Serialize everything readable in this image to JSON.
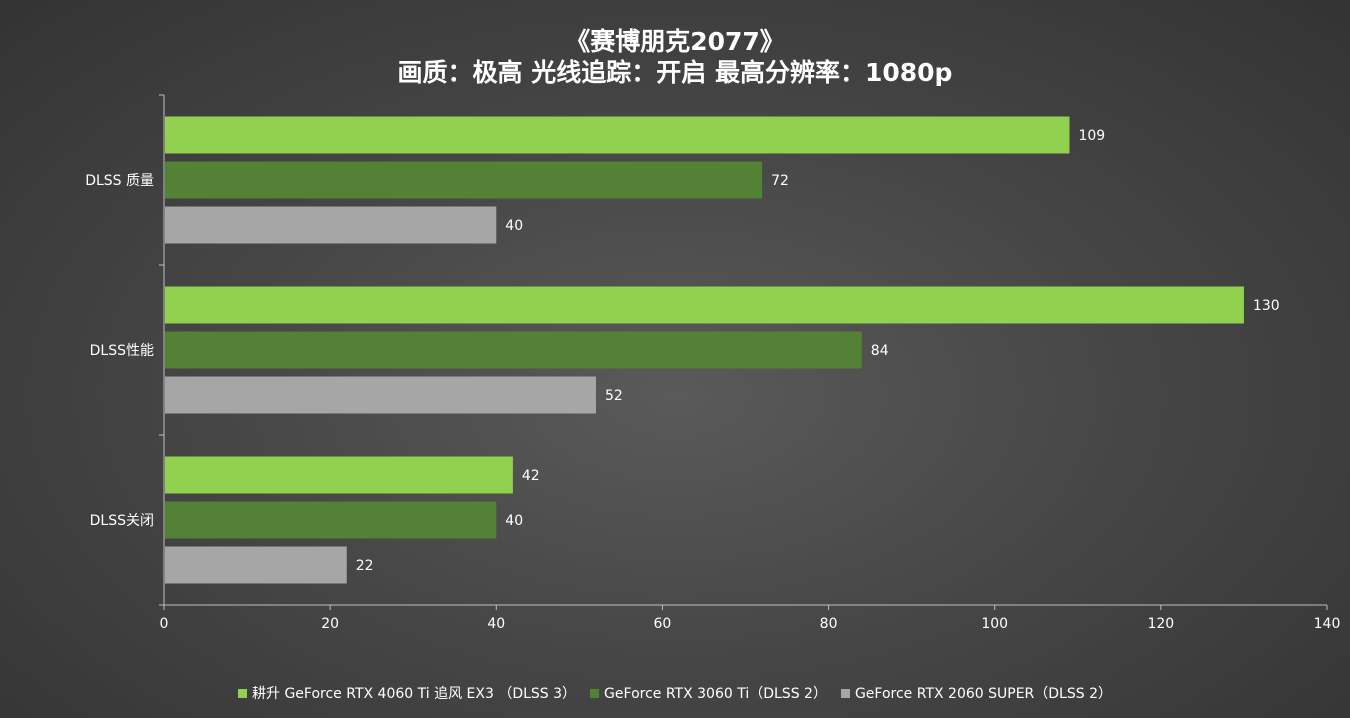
{
  "chart_data": {
    "type": "bar",
    "orientation": "horizontal",
    "title": "《赛博朋克2077》",
    "subtitle": "画质：极高  光线追踪：开启  最高分辨率：1080p",
    "categories": [
      "DLSS 质量",
      "DLSS性能",
      "DLSS关闭"
    ],
    "series": [
      {
        "name": "耕升 GeForce RTX 4060 Ti 追风 EX3 （DLSS 3）",
        "color": "#92d050",
        "values": [
          109,
          130,
          42
        ]
      },
      {
        "name": "GeForce RTX 3060 Ti（DLSS 2）",
        "color": "#538135",
        "values": [
          72,
          84,
          40
        ]
      },
      {
        "name": "GeForce RTX 2060 SUPER（DLSS 2）",
        "color": "#a6a6a6",
        "values": [
          40,
          52,
          22
        ]
      }
    ],
    "xlim": [
      0,
      140
    ],
    "xticks": [
      0,
      20,
      40,
      60,
      80,
      100,
      120,
      140
    ],
    "xlabel": "",
    "ylabel": "",
    "grid": false,
    "legend_position": "bottom"
  }
}
